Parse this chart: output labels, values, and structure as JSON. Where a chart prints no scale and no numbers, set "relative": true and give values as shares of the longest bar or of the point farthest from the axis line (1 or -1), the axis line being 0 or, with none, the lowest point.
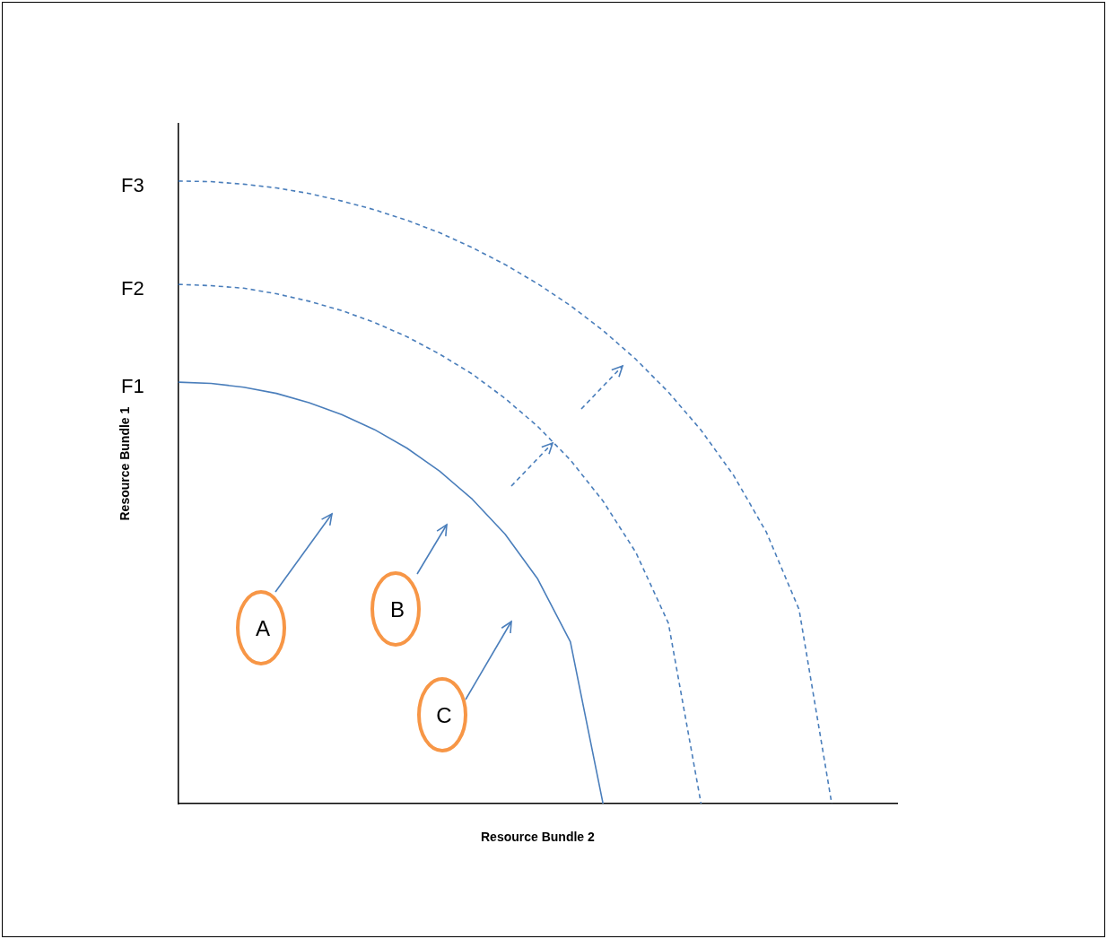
{
  "chart_data": {
    "type": "line",
    "relative": true,
    "xlabel": "Resource Bundle 2",
    "ylabel": "Resource Bundle 1",
    "grid": false,
    "legend": false,
    "marker": "none",
    "annotations": [
      "A",
      "B",
      "C"
    ],
    "categories": [
      null,
      null,
      null,
      null,
      null,
      null,
      null,
      null,
      null,
      null,
      null,
      null,
      null,
      null,
      null,
      null,
      null,
      null,
      null,
      null,
      null,
      null,
      null
    ],
    "series": [
      {
        "name": "F1",
        "color": "#4a7ebb",
        "line_style": "solid",
        "values": [
          0.677,
          0.675,
          0.669,
          0.659,
          0.644,
          0.625,
          0.601,
          0.571,
          0.534,
          0.489,
          0.433,
          0.361,
          0.26,
          0,
          null,
          null,
          null,
          null,
          null,
          null,
          null,
          null,
          null
        ]
      },
      {
        "name": "F2",
        "color": "#4a7ebb",
        "line_style": "dashed",
        "values": [
          0.834,
          0.832,
          0.828,
          0.819,
          0.807,
          0.792,
          0.773,
          0.75,
          0.722,
          0.69,
          0.651,
          0.606,
          0.552,
          0.486,
          0.404,
          0.29,
          0,
          null,
          null,
          null,
          null,
          null,
          null
        ]
      },
      {
        "name": "F3",
        "color": "#4a7ebb",
        "line_style": "dashed",
        "values": [
          1,
          0.999,
          0.995,
          0.989,
          0.98,
          0.968,
          0.954,
          0.937,
          0.917,
          0.893,
          0.866,
          0.835,
          0.8,
          0.76,
          0.714,
          0.661,
          0.6,
          0.527,
          0.436,
          0.312,
          0,
          null,
          null
        ]
      }
    ]
  }
}
